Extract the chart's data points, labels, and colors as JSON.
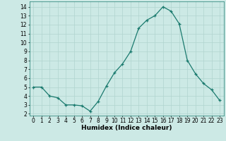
{
  "x": [
    0,
    1,
    2,
    3,
    4,
    5,
    6,
    7,
    8,
    9,
    10,
    11,
    12,
    13,
    14,
    15,
    16,
    17,
    18,
    19,
    20,
    21,
    22,
    23
  ],
  "y": [
    5.0,
    5.0,
    4.0,
    3.8,
    3.0,
    3.0,
    2.9,
    2.3,
    3.4,
    5.1,
    6.6,
    7.6,
    9.0,
    11.6,
    12.5,
    13.0,
    14.0,
    13.5,
    12.1,
    8.0,
    6.5,
    5.4,
    4.7,
    3.5
  ],
  "line_color": "#1a7a6e",
  "marker": "+",
  "markersize": 3.5,
  "linewidth": 0.9,
  "bg_color": "#cce9e5",
  "grid_color": "#b0d4cf",
  "xlabel": "Humidex (Indice chaleur)",
  "xlabel_fontsize": 6.5,
  "xlim": [
    -0.5,
    23.5
  ],
  "ylim": [
    1.8,
    14.6
  ],
  "yticks": [
    2,
    3,
    4,
    5,
    6,
    7,
    8,
    9,
    10,
    11,
    12,
    13,
    14
  ],
  "xtick_labels": [
    "0",
    "1",
    "2",
    "3",
    "4",
    "5",
    "6",
    "7",
    "8",
    "9",
    "10",
    "11",
    "12",
    "13",
    "14",
    "15",
    "16",
    "17",
    "18",
    "19",
    "20",
    "21",
    "22",
    "23"
  ],
  "tick_fontsize": 5.5,
  "markeredgewidth": 0.9
}
